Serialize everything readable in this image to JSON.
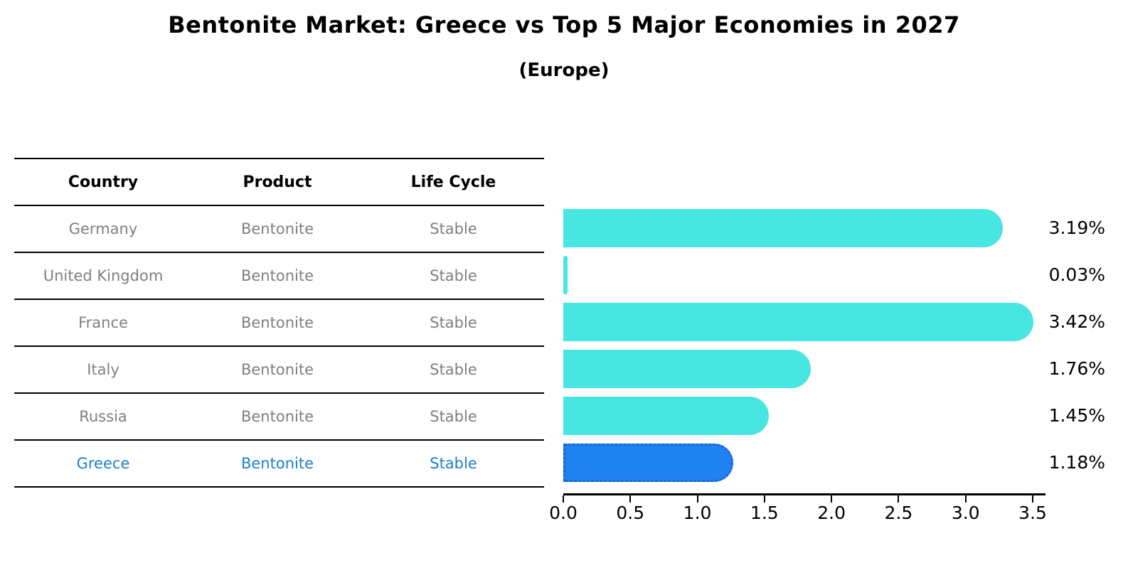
{
  "title": "Bentonite Market: Greece vs Top 5 Major Economies in 2027",
  "subtitle": "(Europe)",
  "table": {
    "headers": [
      "Country",
      "Product",
      "Life Cycle"
    ],
    "rows": [
      {
        "country": "Germany",
        "product": "Bentonite",
        "life_cycle": "Stable",
        "highlighted": false
      },
      {
        "country": "United Kingdom",
        "product": "Bentonite",
        "life_cycle": "Stable",
        "highlighted": false
      },
      {
        "country": "France",
        "product": "Bentonite",
        "life_cycle": "Stable",
        "highlighted": false
      },
      {
        "country": "Italy",
        "product": "Bentonite",
        "life_cycle": "Stable",
        "highlighted": false
      },
      {
        "country": "Russia",
        "product": "Bentonite",
        "life_cycle": "Stable",
        "highlighted": false
      },
      {
        "country": "Greece",
        "product": "Bentonite",
        "life_cycle": "Stable",
        "highlighted": true
      }
    ]
  },
  "chart_data": {
    "type": "bar",
    "orientation": "horizontal",
    "title": "Bentonite Market: Greece vs Top 5 Major Economies in 2027 (Europe)",
    "categories": [
      "Germany",
      "United Kingdom",
      "France",
      "Italy",
      "Russia",
      "Greece"
    ],
    "values": [
      3.19,
      0.03,
      3.42,
      1.76,
      1.45,
      1.18
    ],
    "value_labels": [
      "3.19%",
      "0.03%",
      "3.42%",
      "1.76%",
      "1.45%",
      "1.18%"
    ],
    "x_ticks": [
      "0.0",
      "0.5",
      "1.0",
      "1.5",
      "2.0",
      "2.5",
      "3.0",
      "3.5"
    ],
    "xlim": [
      0,
      3.5
    ],
    "grid": false,
    "legend": "none",
    "bar_color": "#47E6E1",
    "highlight_bar_color": "#1E82F0",
    "highlight_index": 5
  },
  "colors": {
    "body_text_gray": "#7f7f7f",
    "highlight_text_blue": "#1f7fc8",
    "axis_black": "#000000"
  }
}
